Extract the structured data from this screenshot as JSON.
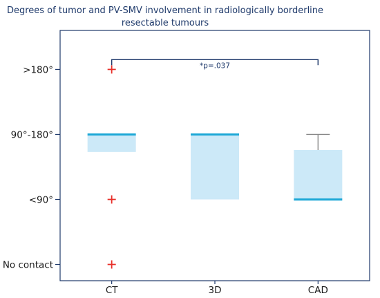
{
  "chart_data": {
    "type": "box",
    "title": "Degrees of tumor and PV-SMV involvement in radiologically borderline resectable tumours",
    "title_lines": [
      "Degrees of tumor and PV-SMV involvement in radiologically borderline",
      "resectable tumours"
    ],
    "categories": [
      "CT",
      "3D",
      "CAD"
    ],
    "y_levels": [
      "No contact",
      "<90°",
      "90°-180°",
      ">180°"
    ],
    "y_values": [
      0,
      1,
      2,
      3
    ],
    "ylim": [
      -0.25,
      3.6
    ],
    "grid": false,
    "boxes": [
      {
        "category": "CT",
        "q1": 1.73,
        "median": 2,
        "q3": 2,
        "whisker_low": null,
        "whisker_high": null,
        "outliers": [
          3,
          1,
          0
        ]
      },
      {
        "category": "3D",
        "q1": 1,
        "median": 2,
        "q3": 2,
        "whisker_low": null,
        "whisker_high": null,
        "outliers": []
      },
      {
        "category": "CAD",
        "q1": 1,
        "median": 1,
        "q3": 1.76,
        "whisker_low": null,
        "whisker_high": 2,
        "outliers": []
      }
    ],
    "annotation": {
      "text": "*p=.037",
      "from": "CT",
      "to": "CAD",
      "y": 3.15
    },
    "colors": {
      "box_fill": "#cce9f8",
      "median": "#1ba7d6",
      "outlier": "#e8302a",
      "axis": "#1f3a6b",
      "whisker": "#888888",
      "bracket": "#1f3a6b"
    }
  }
}
